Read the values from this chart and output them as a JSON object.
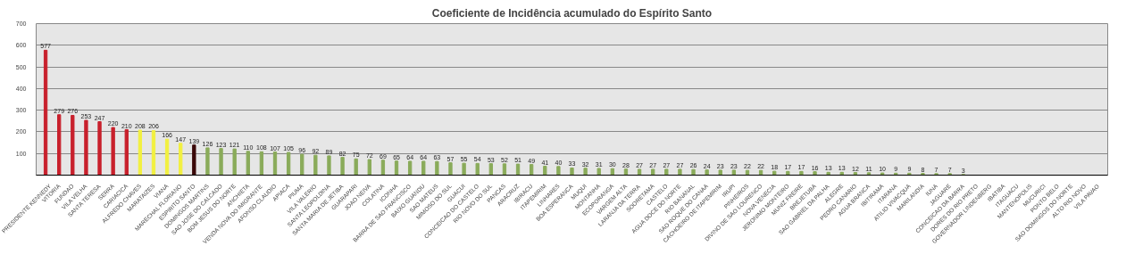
{
  "chart_data": {
    "type": "bar",
    "title": "Coeficiente de Incidência acumulado do Espírito Santo",
    "categories": [
      "PRESIDENTE KENNEDY",
      "VITORIA",
      "FUNDAO",
      "VILA VELHA",
      "SANTA TERESA",
      "SERRA",
      "CARIACICA",
      "ALFREDO CHAVES",
      "MARATAIZES",
      "VIANA",
      "MARECHAL FLORIANO",
      "ESPIRITO SANTO",
      "DOMINGOS MARTINS",
      "SAO JOSE DO CALCADO",
      "BOM JESUS DO NORTE",
      "ANCHIETA",
      "VENDA NOVA DO IMIGRANTE",
      "AFONSO CLAUDIO",
      "APIACA",
      "PIUMA",
      "VILA VALERIO",
      "SANTA LEOPOLDINA",
      "SANTA MARIA DE JETIBA",
      "GUARAPARI",
      "JOAO NEIVA",
      "COLATINA",
      "ICONHA",
      "BARRA DE SAO FRANCISCO",
      "BAIXO GUANDU",
      "SAO MATEUS",
      "MIMOSO DO SUL",
      "GUACUI",
      "CONCEICAO DO CASTELO",
      "RIO NOVO DO SUL",
      "PANCAS",
      "ARACRUZ",
      "IBIRACU",
      "ITAPEMIRIM",
      "LINHARES",
      "BOA ESPERANCA",
      "MUQUI",
      "MONTANHA",
      "ECOPORANGA",
      "VARGEM ALTA",
      "LARANJA DA TERRA",
      "SOORETAMA",
      "CASTELO",
      "AGUA DOCE DO NORTE",
      "RIO BANANAL",
      "SAO ROQUE DO CANAA",
      "CACHOEIRO DE ITAPEMIRIM",
      "IRUPI",
      "PINHEIROS",
      "DIVINO DE SAO LOURENCO",
      "NOVA VENECIA",
      "JERONIMO MONTEIRO",
      "MUNIZ FREIRE",
      "BREJETUBA",
      "SAO GABRIEL DA PALHA",
      "ALEGRE",
      "PEDRO CANARIO",
      "AGUA BRANCA",
      "IBITIRAMA",
      "ITARANA",
      "ATILIO VIVACQUA",
      "MARILANDIA",
      "IUNA",
      "JAGUARE",
      "CONCEICAO DA BARRA",
      "DORES DO RIO PRETO",
      "GOVERNADOR LINDENBERG",
      "IBATIBA",
      "ITAGUACU",
      "MANTENOPOLIS",
      "MUCURICI",
      "PONTO BELO",
      "SAO DOMINGOS DO NORTE",
      "ALTO RIO NOVO",
      "VILA PAVAO"
    ],
    "values": [
      577,
      279,
      276,
      253,
      247,
      220,
      210,
      208,
      206,
      166,
      147,
      139,
      126,
      123,
      121,
      110,
      108,
      107,
      105,
      96,
      92,
      89,
      82,
      75,
      72,
      69,
      65,
      64,
      64,
      63,
      57,
      55,
      54,
      53,
      52,
      51,
      49,
      41,
      40,
      33,
      32,
      31,
      30,
      28,
      27,
      27,
      27,
      27,
      26,
      24,
      23,
      23,
      22,
      22,
      18,
      17,
      17,
      16,
      13,
      13,
      12,
      11,
      10,
      9,
      9,
      8,
      7,
      7,
      3,
      null,
      null,
      null,
      null,
      null,
      null,
      null,
      null,
      null,
      null
    ],
    "colors": [
      "#c8202c",
      "#c8202c",
      "#c8202c",
      "#c8202c",
      "#c8202c",
      "#c8202c",
      "#c8202c",
      "#f2f040",
      "#f2f040",
      "#f2f040",
      "#f2f040",
      "#3a0808",
      "#8aab5a",
      "#8aab5a",
      "#8aab5a",
      "#8aab5a",
      "#8aab5a",
      "#8aab5a",
      "#8aab5a",
      "#8aab5a",
      "#8aab5a",
      "#8aab5a",
      "#8aab5a",
      "#8aab5a",
      "#8aab5a",
      "#8aab5a",
      "#8aab5a",
      "#8aab5a",
      "#8aab5a",
      "#8aab5a",
      "#8aab5a",
      "#8aab5a",
      "#8aab5a",
      "#8aab5a",
      "#8aab5a",
      "#8aab5a",
      "#8aab5a",
      "#8aab5a",
      "#8aab5a",
      "#8aab5a",
      "#8aab5a",
      "#8aab5a",
      "#8aab5a",
      "#8aab5a",
      "#8aab5a",
      "#8aab5a",
      "#8aab5a",
      "#8aab5a",
      "#8aab5a",
      "#8aab5a",
      "#8aab5a",
      "#8aab5a",
      "#8aab5a",
      "#8aab5a",
      "#8aab5a",
      "#8aab5a",
      "#8aab5a",
      "#8aab5a",
      "#8aab5a",
      "#8aab5a",
      "#8aab5a",
      "#8aab5a",
      "#8aab5a",
      "#8aab5a",
      "#8aab5a",
      "#8aab5a",
      "#8aab5a",
      "#8aab5a",
      "#8aab5a",
      "#8aab5a",
      "#8aab5a",
      "#8aab5a",
      "#8aab5a",
      "#8aab5a",
      "#8aab5a",
      "#8aab5a",
      "#8aab5a",
      "#8aab5a",
      "#8aab5a"
    ],
    "ylim": [
      0,
      700
    ],
    "yticks": [
      100,
      200,
      300,
      400,
      500,
      600,
      700
    ],
    "grid": "y",
    "data_labels": true
  }
}
